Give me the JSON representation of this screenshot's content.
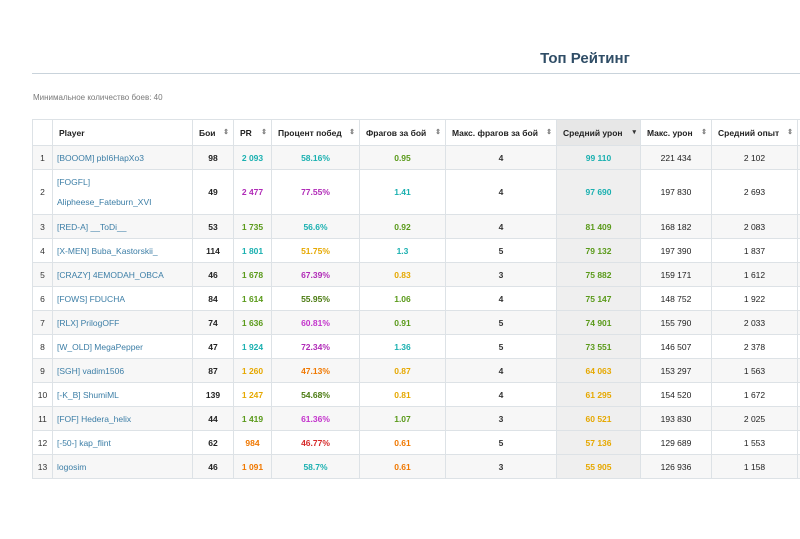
{
  "header": {
    "title": "Топ Рейтинг"
  },
  "filter": {
    "min_battles": "Минимальное количество боев: 40"
  },
  "table": {
    "columns": [
      {
        "label": ""
      },
      {
        "label": "Player"
      },
      {
        "label": "Бои",
        "sort": "⇕"
      },
      {
        "label": "PR",
        "sort": "⇕"
      },
      {
        "label": "Процент побед",
        "sort": "⇕"
      },
      {
        "label": "Фрагов за бой",
        "sort": "⇕"
      },
      {
        "label": "Макс. фрагов за бой",
        "sort": "⇕"
      },
      {
        "label": "Средний урон",
        "sort": "▾"
      },
      {
        "label": "Макс. урон",
        "sort": "⇕"
      },
      {
        "label": "Средний опыт",
        "sort": "⇕"
      },
      {
        "label": ""
      }
    ],
    "rows": [
      {
        "rank": "1",
        "player": [
          "[BOOOM] pbI6HapXo3"
        ],
        "battles": "98",
        "pr": "2 093",
        "pr_color": "cyan",
        "winrate": "58.16%",
        "winrate_color": "cyan",
        "frags": "0.95",
        "frags_color": "green",
        "max_frags": "4",
        "dmg": "99 110",
        "dmg_color": "cyan",
        "max_dmg": "221 434",
        "xp": "2 102"
      },
      {
        "rank": "2",
        "player": [
          "[FOGFL]",
          "Alipheese_Fateburn_XVI"
        ],
        "battles": "49",
        "pr": "2 477",
        "pr_color": "purple",
        "winrate": "77.55%",
        "winrate_color": "purple",
        "frags": "1.41",
        "frags_color": "cyan",
        "max_frags": "4",
        "dmg": "97 690",
        "dmg_color": "cyan",
        "max_dmg": "197 830",
        "xp": "2 693"
      },
      {
        "rank": "3",
        "player": [
          "[RED-A] __ToDi__"
        ],
        "battles": "53",
        "pr": "1 735",
        "pr_color": "green",
        "winrate": "56.6%",
        "winrate_color": "cyan",
        "frags": "0.92",
        "frags_color": "green",
        "max_frags": "4",
        "dmg": "81 409",
        "dmg_color": "green",
        "max_dmg": "168 182",
        "xp": "2 083"
      },
      {
        "rank": "4",
        "player": [
          "[X-MEN] Buba_Kastorskii_"
        ],
        "battles": "114",
        "pr": "1 801",
        "pr_color": "cyan",
        "winrate": "51.75%",
        "winrate_color": "yellow",
        "frags": "1.3",
        "frags_color": "cyan",
        "max_frags": "5",
        "dmg": "79 132",
        "dmg_color": "green",
        "max_dmg": "197 390",
        "xp": "1 837"
      },
      {
        "rank": "5",
        "player": [
          "[CRAZY] 4EMODAH_OBCA"
        ],
        "battles": "46",
        "pr": "1 678",
        "pr_color": "green",
        "winrate": "67.39%",
        "winrate_color": "purple",
        "frags": "0.83",
        "frags_color": "yellow",
        "max_frags": "3",
        "dmg": "75 882",
        "dmg_color": "green",
        "max_dmg": "159 171",
        "xp": "1 612"
      },
      {
        "rank": "6",
        "player": [
          "[FOWS] FDUCHA"
        ],
        "battles": "84",
        "pr": "1 614",
        "pr_color": "green",
        "winrate": "55.95%",
        "winrate_color": "darkgreen",
        "frags": "1.06",
        "frags_color": "green",
        "max_frags": "4",
        "dmg": "75 147",
        "dmg_color": "green",
        "max_dmg": "148 752",
        "xp": "1 922"
      },
      {
        "rank": "7",
        "player": [
          "[RLX] PrilogOFF"
        ],
        "battles": "74",
        "pr": "1 636",
        "pr_color": "green",
        "winrate": "60.81%",
        "winrate_color": "magenta",
        "frags": "0.91",
        "frags_color": "green",
        "max_frags": "5",
        "dmg": "74 901",
        "dmg_color": "green",
        "max_dmg": "155 790",
        "xp": "2 033"
      },
      {
        "rank": "8",
        "player": [
          "[W_OLD] MegaPepper"
        ],
        "battles": "47",
        "pr": "1 924",
        "pr_color": "cyan",
        "winrate": "72.34%",
        "winrate_color": "purple",
        "frags": "1.36",
        "frags_color": "cyan",
        "max_frags": "5",
        "dmg": "73 551",
        "dmg_color": "green",
        "max_dmg": "146 507",
        "xp": "2 378"
      },
      {
        "rank": "9",
        "player": [
          "[SGH] vadim1506"
        ],
        "battles": "87",
        "pr": "1 260",
        "pr_color": "yellow",
        "winrate": "47.13%",
        "winrate_color": "orange",
        "frags": "0.87",
        "frags_color": "yellow",
        "max_frags": "4",
        "dmg": "64 063",
        "dmg_color": "yellow",
        "max_dmg": "153 297",
        "xp": "1 563"
      },
      {
        "rank": "10",
        "player": [
          "[-K_B] ShumiML"
        ],
        "battles": "139",
        "pr": "1 247",
        "pr_color": "yellow",
        "winrate": "54.68%",
        "winrate_color": "darkgreen",
        "frags": "0.81",
        "frags_color": "yellow",
        "max_frags": "4",
        "dmg": "61 295",
        "dmg_color": "yellow",
        "max_dmg": "154 520",
        "xp": "1 672"
      },
      {
        "rank": "11",
        "player": [
          "[FOF] Hedera_helix"
        ],
        "battles": "44",
        "pr": "1 419",
        "pr_color": "green",
        "winrate": "61.36%",
        "winrate_color": "magenta",
        "frags": "1.07",
        "frags_color": "green",
        "max_frags": "3",
        "dmg": "60 521",
        "dmg_color": "yellow",
        "max_dmg": "193 830",
        "xp": "2 025"
      },
      {
        "rank": "12",
        "player": [
          "[-50-] kap_flint"
        ],
        "battles": "62",
        "pr": "984",
        "pr_color": "orange",
        "winrate": "46.77%",
        "winrate_color": "red",
        "frags": "0.61",
        "frags_color": "orange",
        "max_frags": "5",
        "dmg": "57 136",
        "dmg_color": "yellow",
        "max_dmg": "129 689",
        "xp": "1 553"
      },
      {
        "rank": "13",
        "player": [
          "logosim"
        ],
        "battles": "46",
        "pr": "1 091",
        "pr_color": "orange",
        "winrate": "58.7%",
        "winrate_color": "cyan",
        "frags": "0.61",
        "frags_color": "orange",
        "max_frags": "3",
        "dmg": "55 905",
        "dmg_color": "yellow",
        "max_dmg": "126 936",
        "xp": "1 158"
      }
    ]
  },
  "colors": {
    "cyan": "#1ab0b0",
    "green": "#5a9a1a",
    "purple": "#b02ab7",
    "red": "#d62a2a",
    "yellow": "#e6a800",
    "orange": "#f07800",
    "darkgreen": "#4a7a10",
    "magenta": "#c333cc",
    "title": "#2f4d66",
    "link": "#3c7ea6"
  }
}
